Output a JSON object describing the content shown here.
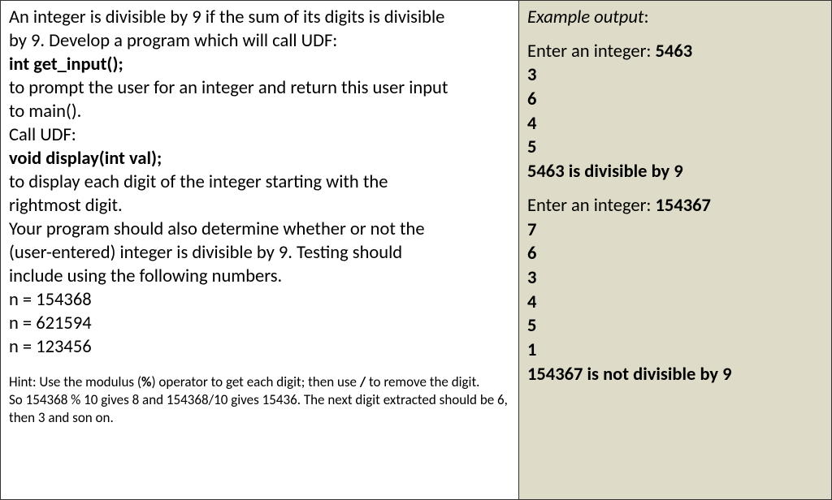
{
  "left": {
    "p1a": "An integer is divisible by 9 if the sum of its digits is divisible",
    "p1b": "by 9. Develop a program which will call UDF:",
    "udf1": "int get_input();",
    "p2a": "to prompt the user for an integer and return this user input",
    "p2b": "to main().",
    "p2c": "Call UDF:",
    "udf2": "void display(int val);",
    "p3a": "to display each digit of the integer starting with the",
    "p3b": "rightmost digit.",
    "p4a": "Your program should also determine whether or not the",
    "p4b": "(user-entered) integer is divisible by 9. Testing should",
    "p4c": "include using the following numbers.",
    "test1": "n = 154368",
    "test2": "n = 621594",
    "test3": "n = 123456",
    "hint1a": "Hint: Use the modulus (",
    "hint1pct": "%",
    "hint1b": ") operator to get each digit; then use ",
    "hint1slash": "/",
    "hint1c": " to remove the digit.",
    "hint2": "So 154368 % 10 gives 8 and 154368/10 gives 15436. The next digit extracted should be 6,",
    "hint3": "then 3 and son on."
  },
  "right": {
    "title": "Example output",
    "colon": ":",
    "ex1": {
      "prompt": "Enter an integer: ",
      "value": "5463",
      "d1": "3",
      "d2": "6",
      "d3": "4",
      "d4": "5",
      "result": "5463 is divisible by 9"
    },
    "ex2": {
      "prompt": "Enter an integer: ",
      "value": "154367",
      "d1": "7",
      "d2": "6",
      "d3": "3",
      "d4": "4",
      "d5": "5",
      "d6": "1",
      "result": "154367 is not divisible by 9"
    }
  }
}
